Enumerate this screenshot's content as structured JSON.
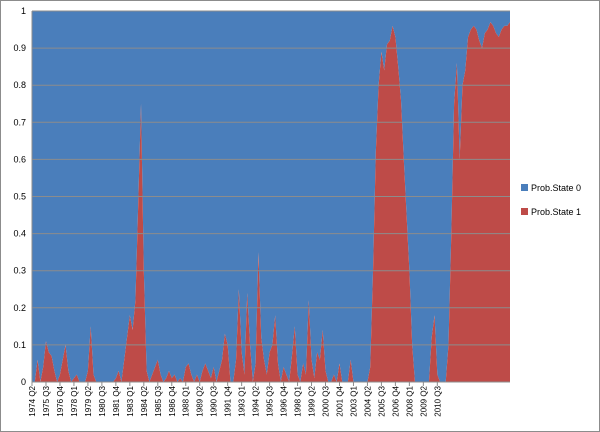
{
  "chart_data": {
    "type": "area",
    "stacked": true,
    "title": "",
    "xlabel": "",
    "ylabel": "",
    "ylim": [
      0,
      1
    ],
    "y_ticks": [
      "0",
      "0.1",
      "0.2",
      "0.3",
      "0.4",
      "0.5",
      "0.6",
      "0.7",
      "0.8",
      "0.9",
      "1"
    ],
    "grid": "horizontal",
    "legend_position": "right",
    "x_start": "1974 Q2",
    "x_end": "2011 Q1",
    "x_tick_labels": [
      "1974 Q2",
      "1975 Q3",
      "1976 Q4",
      "1978 Q1",
      "1979 Q2",
      "1980 Q3",
      "1981 Q4",
      "1983 Q1",
      "1984 Q2",
      "1985 Q3",
      "1986 Q4",
      "1988 Q1",
      "1989 Q2",
      "1990 Q3",
      "1991 Q4",
      "1993 Q1",
      "1994 Q2",
      "1995 Q3",
      "1996 Q4",
      "1998 Q1",
      "1999 Q2",
      "2000 Q3",
      "2001 Q4",
      "2003 Q1",
      "2004 Q2",
      "2005 Q3",
      "2006 Q4",
      "2008 Q1",
      "2009 Q2",
      "2010 Q3"
    ],
    "series": [
      {
        "name": "Prob.State 0",
        "color": "#4a7ebb",
        "description": "complement of Prob.State 1 (1 - value)"
      },
      {
        "name": "Prob.State 1",
        "color": "#be4b48",
        "values": [
          0.0,
          0.0,
          0.06,
          0.0,
          0.04,
          0.11,
          0.08,
          0.07,
          0.03,
          0.0,
          0.02,
          0.06,
          0.1,
          0.03,
          0.0,
          0.01,
          0.02,
          0.0,
          0.0,
          0.0,
          0.03,
          0.15,
          0.02,
          0.0,
          0.0,
          0.0,
          0.0,
          0.0,
          0.0,
          0.0,
          0.01,
          0.03,
          0.0,
          0.06,
          0.12,
          0.18,
          0.14,
          0.22,
          0.48,
          0.75,
          0.3,
          0.03,
          0.0,
          0.02,
          0.04,
          0.06,
          0.02,
          0.0,
          0.01,
          0.03,
          0.01,
          0.02,
          0.0,
          0.01,
          0.0,
          0.04,
          0.05,
          0.02,
          0.0,
          0.02,
          0.0,
          0.03,
          0.05,
          0.03,
          0.01,
          0.04,
          0.0,
          0.03,
          0.06,
          0.13,
          0.1,
          0.0,
          0.0,
          0.06,
          0.25,
          0.08,
          0.02,
          0.24,
          0.1,
          0.0,
          0.05,
          0.35,
          0.12,
          0.06,
          0.02,
          0.08,
          0.1,
          0.18,
          0.05,
          0.0,
          0.04,
          0.02,
          0.0,
          0.07,
          0.15,
          0.02,
          0.0,
          0.05,
          0.02,
          0.22,
          0.06,
          0.01,
          0.08,
          0.06,
          0.14,
          0.03,
          0.0,
          0.0,
          0.02,
          0.0,
          0.05,
          0.0,
          0.0,
          0.0,
          0.06,
          0.0,
          0.0,
          0.0,
          0.0,
          0.0,
          0.0,
          0.04,
          0.3,
          0.62,
          0.8,
          0.89,
          0.84,
          0.91,
          0.92,
          0.96,
          0.93,
          0.85,
          0.76,
          0.6,
          0.45,
          0.3,
          0.1,
          0.0,
          0.0,
          0.0,
          0.0,
          0.0,
          0.0,
          0.12,
          0.18,
          0.02,
          0.0,
          0.0,
          0.0,
          0.1,
          0.4,
          0.75,
          0.86,
          0.6,
          0.8,
          0.84,
          0.93,
          0.95,
          0.96,
          0.95,
          0.92,
          0.9,
          0.94,
          0.95,
          0.97,
          0.96,
          0.94,
          0.93,
          0.95,
          0.96,
          0.96,
          0.97
        ]
      }
    ]
  }
}
